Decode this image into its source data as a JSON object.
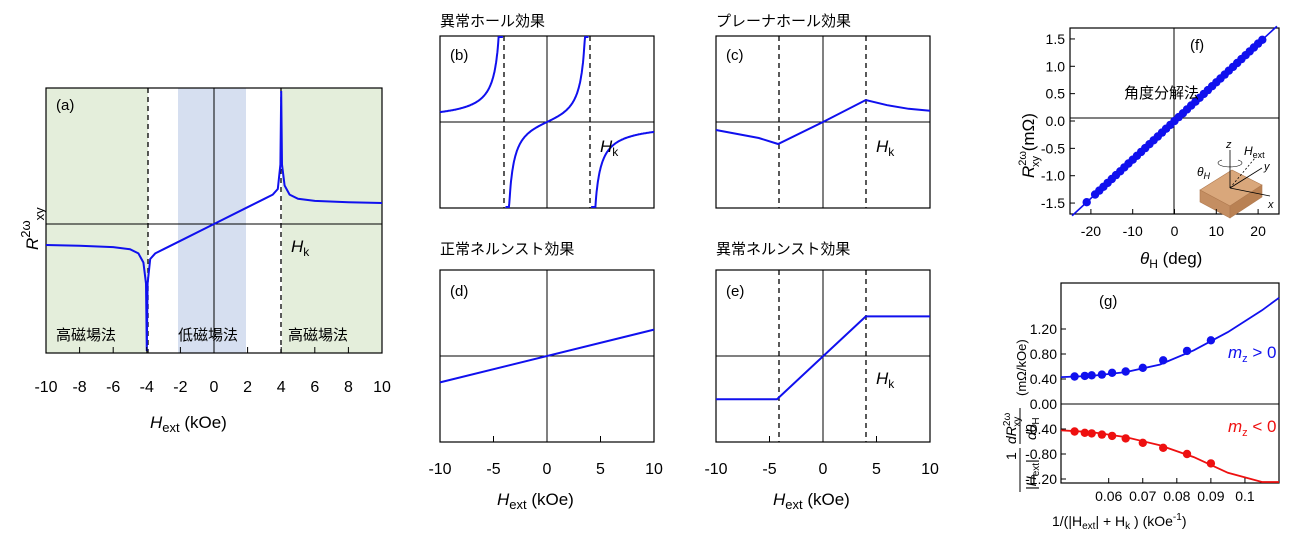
{
  "colors": {
    "curve": "#1010ee",
    "negative": "#ee1010",
    "bg_high": "#e4eedb",
    "bg_low": "#d6dff0",
    "inset": "#d9a77b"
  },
  "chart_data": [
    {
      "id": "a",
      "type": "line",
      "panel_label": "(a)",
      "x_tick_labels": [
        "-10",
        "-8",
        "-6",
        "-4",
        "-2",
        "0",
        "2",
        "4",
        "6",
        "8",
        "10"
      ],
      "xlabel": {
        "main": "H",
        "sub": "ext",
        "unit": " (kOe)"
      },
      "ylabel": {
        "main": "R",
        "sup": "2ω",
        "sub": "xy"
      },
      "xlim": [
        -10,
        10
      ],
      "region_labels": [
        "高磁場法",
        "低磁場法",
        "高磁場法"
      ],
      "marker_label": {
        "main": "H",
        "sub": "k"
      },
      "Hk": 4,
      "curve": {
        "x": [
          -10,
          -8,
          -6,
          -5,
          -4.5,
          -4.2,
          -4.05,
          -4,
          -3.95,
          -3.8,
          -3.5,
          -3,
          -2,
          0,
          2,
          3,
          3.5,
          3.8,
          3.95,
          4,
          4.05,
          4.2,
          4.5,
          5,
          6,
          8,
          10
        ],
        "y": [
          -0.3,
          -0.31,
          -0.33,
          -0.36,
          -0.42,
          -0.55,
          -0.85,
          -1.9,
          -0.85,
          -0.5,
          -0.42,
          -0.36,
          -0.24,
          0,
          0.24,
          0.36,
          0.42,
          0.5,
          0.85,
          1.9,
          0.85,
          0.55,
          0.42,
          0.36,
          0.33,
          0.31,
          0.3
        ]
      }
    },
    {
      "id": "b",
      "type": "line",
      "panel_label": "(b)",
      "title": "異常ホール効果",
      "marker_label": {
        "main": "H",
        "sub": "k"
      },
      "x_tick_labels": [
        "-10",
        "-5",
        "0",
        "5",
        "10"
      ],
      "xlabel": {
        "main": "H",
        "sub": "ext",
        "unit": " (kOe)"
      },
      "xlim": [
        -10,
        10
      ],
      "Hk": 4
    },
    {
      "id": "c",
      "type": "line",
      "panel_label": "(c)",
      "title": "プレーナホール効果",
      "marker_label": {
        "main": "H",
        "sub": "k"
      },
      "Hk": 4,
      "curve": {
        "x": [
          -10,
          -6,
          -4.2,
          0,
          4,
          6,
          8,
          10
        ],
        "y": [
          -0.2,
          -0.4,
          -0.55,
          0,
          0.55,
          0.42,
          0.33,
          0.28
        ]
      }
    },
    {
      "id": "d",
      "type": "line",
      "panel_label": "(d)",
      "title": "正常ネルンスト効果",
      "curve": {
        "x": [
          -10,
          10
        ],
        "y": [
          -0.6,
          0.6
        ]
      }
    },
    {
      "id": "e",
      "type": "line",
      "panel_label": "(e)",
      "title": "異常ネルンスト効果",
      "marker_label": {
        "main": "H",
        "sub": "k"
      },
      "x_tick_labels": [
        "-10",
        "-5",
        "0",
        "5",
        "10"
      ],
      "xlabel": {
        "main": "H",
        "sub": "ext",
        "unit": " (kOe)"
      },
      "Hk": 4,
      "curve": {
        "x": [
          -10,
          -4.3,
          4,
          10
        ],
        "y": [
          -1.2,
          -1.2,
          1.1,
          1.1
        ]
      }
    },
    {
      "id": "f",
      "type": "scatter",
      "panel_label": "(f)",
      "inset_title": "角度分解法",
      "x_tick_labels": [
        "-20",
        "-10",
        "0",
        "10",
        "20"
      ],
      "y_tick_labels": [
        "1.5",
        "1.0",
        "0.5",
        "0.0",
        "-0.5",
        "-1.0",
        "-1.5"
      ],
      "xlabel": {
        "main": "θ",
        "sub": "H",
        "unit": " (deg)"
      },
      "ylabel": {
        "main": "R",
        "sup": "2ω",
        "sub": "xy",
        "unit": " (mΩ)"
      },
      "xlim": [
        -25,
        25
      ],
      "ylim": [
        -1.7,
        1.7
      ],
      "fit": {
        "slope": 0.0707,
        "intercept": 0
      },
      "points_x": [
        -21,
        -19,
        -18,
        -17,
        -16,
        -15,
        -14,
        -13,
        -12,
        -11,
        -10,
        -9,
        -8,
        -7,
        -6,
        -5,
        -4,
        -3,
        -2,
        -1,
        0,
        1,
        2,
        3,
        4,
        5,
        6,
        7,
        8,
        9,
        10,
        11,
        12,
        13,
        14,
        15,
        16,
        17,
        18,
        19,
        20,
        21
      ],
      "inset_labels": {
        "theta": "θ",
        "theta_sub": "H",
        "field": "H",
        "field_sub": "ext",
        "z": "z",
        "y": "y",
        "x": "x"
      }
    },
    {
      "id": "g",
      "type": "scatter",
      "panel_label": "(g)",
      "x_tick_labels": [
        "0.06",
        "0.07",
        "0.08",
        "0.09",
        "0.1"
      ],
      "x_tick_values": [
        0.06,
        0.07,
        0.08,
        0.09,
        0.1
      ],
      "y_tick_labels": [
        "1.20",
        "0.80",
        "0.40",
        "0.00",
        "-0.40",
        "-0.80",
        "-1.20"
      ],
      "y_tick_values": [
        1.2,
        0.8,
        0.4,
        0.0,
        -0.4,
        -0.8,
        -1.2
      ],
      "xlim": [
        0.046,
        0.11
      ],
      "ylim": [
        -1.6,
        1.6
      ],
      "xlabel": "1/(|H",
      "xlabel_sub": "ext",
      "xlabel_mid": "| + H",
      "xlabel_sub2": "k",
      "xlabel_end": "  ) (kOe",
      "xlabel_sup": "-1",
      "xlabel_close": ")",
      "ylabel_left": "1",
      "ylabel_den": "|H",
      "ylabel_den_sub": "ext",
      "ylabel_den_end": "|",
      "ylabel_num2": "dR",
      "ylabel_num2_sup": "2ω",
      "ylabel_num2_sub": "xy",
      "ylabel_den2": "dθ",
      "ylabel_den2_sub": "H",
      "ylabel_unit": "(mΩ/kOe)",
      "series": [
        {
          "name": "m_z > 0",
          "label_main": "m",
          "label_sub": "z",
          "label_rest": " > 0",
          "x": [
            0.05,
            0.053,
            0.055,
            0.058,
            0.061,
            0.065,
            0.07,
            0.076,
            0.083,
            0.09
          ],
          "y": [
            0.44,
            0.45,
            0.46,
            0.47,
            0.5,
            0.52,
            0.58,
            0.7,
            0.85,
            1.02
          ],
          "fit_x": [
            0.046,
            0.055,
            0.065,
            0.075,
            0.085,
            0.095,
            0.105,
            0.11
          ],
          "fit_y": [
            0.43,
            0.45,
            0.51,
            0.63,
            0.86,
            1.15,
            1.5,
            1.7
          ]
        },
        {
          "name": "m_z < 0",
          "label_main": "m",
          "label_sub": "z",
          "label_rest": " < 0",
          "x": [
            0.05,
            0.053,
            0.055,
            0.058,
            0.061,
            0.065,
            0.07,
            0.076,
            0.083,
            0.09
          ],
          "y": [
            -0.44,
            -0.46,
            -0.47,
            -0.49,
            -0.51,
            -0.55,
            -0.62,
            -0.7,
            -0.8,
            -0.95
          ],
          "fit_x": [
            0.046,
            0.055,
            0.065,
            0.075,
            0.085,
            0.095,
            0.105,
            0.11
          ],
          "fit_y": [
            -0.42,
            -0.45,
            -0.53,
            -0.66,
            -0.85,
            -1.1,
            -1.4,
            -1.58
          ]
        }
      ]
    }
  ]
}
